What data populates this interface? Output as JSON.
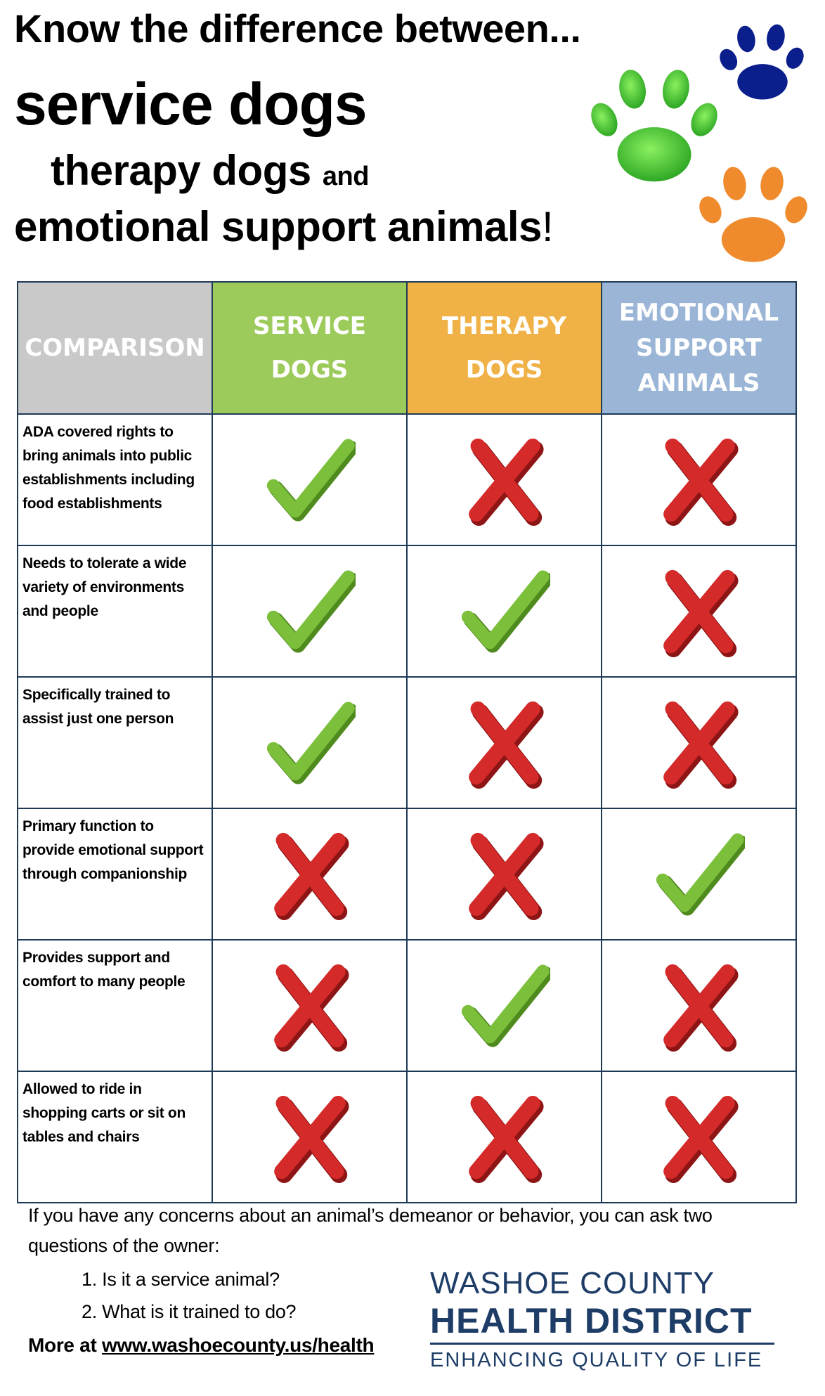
{
  "headline": {
    "line1": "Know the difference between...",
    "line2": "service dogs",
    "line3_main": "therapy dogs",
    "line3_join": "and",
    "line4_main": "emotional support animals",
    "line4_end": "!"
  },
  "paws": [
    {
      "name": "blue-paw-icon",
      "color": "#0a1e8c"
    },
    {
      "name": "green-paw-icon",
      "color": "#4fc53a"
    },
    {
      "name": "orange-paw-icon",
      "color": "#ef8a2d"
    }
  ],
  "table": {
    "headers": {
      "comparison": "COMPARISON",
      "service_1": "SERVICE",
      "service_2": "DOGS",
      "therapy_1": "THERAPY",
      "therapy_2": "DOGS",
      "esa_1": "EMOTIONAL",
      "esa_2": "SUPPORT",
      "esa_3": "ANIMALS"
    },
    "colors": {
      "check": "#7cbf3a",
      "cross": "#d42a2a"
    },
    "rows": [
      {
        "label": "ADA covered rights to bring animals into public establishments including food establishments",
        "service": "check",
        "therapy": "cross",
        "esa": "cross"
      },
      {
        "label": "Needs to tolerate a wide variety of environments and people",
        "service": "check",
        "therapy": "check",
        "esa": "cross"
      },
      {
        "label": "Specifically trained to assist just one person",
        "service": "check",
        "therapy": "cross",
        "esa": "cross"
      },
      {
        "label": "Primary function to provide emotional support through companionship",
        "service": "cross",
        "therapy": "cross",
        "esa": "check"
      },
      {
        "label": "Provides support and comfort to many people",
        "service": "cross",
        "therapy": "check",
        "esa": "cross"
      },
      {
        "label": "Allowed to ride in shopping carts or sit on tables and chairs",
        "service": "cross",
        "therapy": "cross",
        "esa": "cross"
      }
    ]
  },
  "footer": {
    "intro": "If you have any concerns about an animal’s demeanor or behavior, you can ask two questions of the owner:",
    "q1": "1.  Is it a service animal?",
    "q2": "2.  What is it trained to do?",
    "more_prefix": "More at ",
    "more_link": "www.washoecounty.us/health"
  },
  "logo": {
    "line1": "WASHOE COUNTY",
    "line2": "HEALTH DISTRICT",
    "line3": "ENHANCING QUALITY OF LIFE"
  }
}
